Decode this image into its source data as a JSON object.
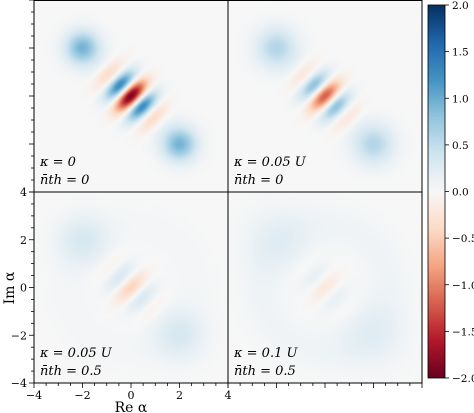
{
  "chart_data": {
    "type": "heatmap",
    "description_free": true,
    "colormap": "RdBu",
    "colorbar": {
      "range": [
        -2.0,
        2.0
      ],
      "tick_labels": [
        "2.0",
        "1.5",
        "1.0",
        "0.5",
        "0.0",
        "−0.5",
        "−1.0",
        "−1.5",
        "−2.0"
      ],
      "tick_values": [
        2.0,
        1.5,
        1.0,
        0.5,
        0.0,
        -0.5,
        -1.0,
        -1.5,
        -2.0
      ]
    },
    "xlabel": "Re α",
    "ylabel": "Im α",
    "xlim": [
      -4,
      4
    ],
    "ylim": [
      -4,
      4
    ],
    "x_tick_labels": [
      "−4",
      "−2",
      "0",
      "2",
      "4"
    ],
    "y_tick_labels": [
      "4",
      "2",
      "0",
      "−2",
      "−4"
    ],
    "x_tick_values": [
      -4,
      -2,
      0,
      2,
      4
    ],
    "y_tick_values": [
      4,
      2,
      0,
      -2,
      -4
    ],
    "panels": [
      {
        "label_line1": "κ = 0",
        "label_line2": "n̄th = 0",
        "kappa": "0",
        "nth": "0",
        "fringe_amp": 1.9,
        "blob_amp": 0.95,
        "blob_spread": 0.0
      },
      {
        "label_line1": "κ = 0.05 U",
        "label_line2": "n̄th = 0",
        "kappa": "0.05 U",
        "nth": "0",
        "fringe_amp": 1.2,
        "blob_amp": 0.6,
        "blob_spread": 0.15
      },
      {
        "label_line1": "κ = 0.05 U",
        "label_line2": "n̄th = 0.5",
        "kappa": "0.05 U",
        "nth": "0.5",
        "fringe_amp": 0.45,
        "blob_amp": 0.3,
        "blob_spread": 0.35
      },
      {
        "label_line1": "κ = 0.1 U",
        "label_line2": "n̄th = 0.5",
        "kappa": "0.1 U",
        "nth": "0.5",
        "fringe_amp": 0.2,
        "blob_amp": 0.17,
        "blob_spread": 0.7
      }
    ]
  }
}
